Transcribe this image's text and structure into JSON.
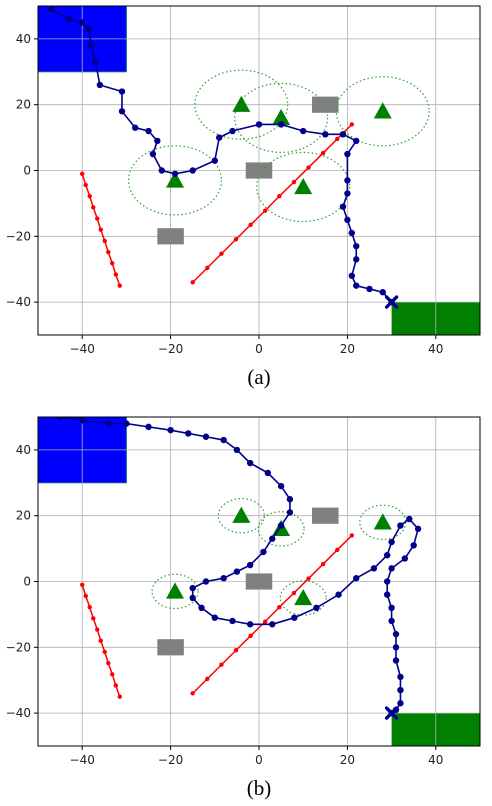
{
  "chart_data": [
    {
      "type": "scatter",
      "caption": "(a)",
      "xlim": [
        -50,
        50
      ],
      "ylim": [
        -50,
        50
      ],
      "xticks": [
        -40,
        -20,
        0,
        20,
        40
      ],
      "yticks": [
        -40,
        -20,
        0,
        20,
        40
      ],
      "grid": true,
      "colors": {
        "start": "#0000ff",
        "goal": "#007f00",
        "path": "#00008b",
        "line": "#ff0000",
        "obstacle": "#808080",
        "landmark": "#008000",
        "zone": "#2ca02c"
      },
      "start_region": {
        "x": [
          -50,
          -30
        ],
        "y": [
          30,
          50
        ]
      },
      "goal_region": {
        "x": [
          30,
          50
        ],
        "y": [
          -50,
          -40
        ]
      },
      "obstacles": [
        {
          "x": 15,
          "y": 20
        },
        {
          "x": -20,
          "y": -20
        },
        {
          "x": 0,
          "y": 0
        }
      ],
      "landmarks": [
        {
          "x": -4,
          "y": 20,
          "radius": 10.5
        },
        {
          "x": 5,
          "y": 16,
          "radius": 10.5
        },
        {
          "x": 28,
          "y": 18,
          "radius": 10.5
        },
        {
          "x": -19,
          "y": -3,
          "radius": 10.5
        },
        {
          "x": 10,
          "y": -5,
          "radius": 10.5
        }
      ],
      "line_segments": [
        {
          "x": [
            -40,
            -39.2,
            -38.3,
            -37.5,
            -36.6,
            -35.8,
            -34.9,
            -34.1,
            -33.2,
            -32.4,
            -31.5
          ],
          "y": [
            -1,
            -4.4,
            -7.8,
            -11.2,
            -14.6,
            -18,
            -21.4,
            -24.8,
            -28.2,
            -31.6,
            -35
          ]
        },
        {
          "x": [
            -15,
            -11.7,
            -8.5,
            -5.2,
            -1.9,
            1.4,
            4.6,
            7.9,
            11.2,
            14.5,
            17.7,
            21
          ],
          "y": [
            -34,
            -29.6,
            -25.3,
            -20.9,
            -16.5,
            -12.2,
            -7.8,
            -3.5,
            0.9,
            5.3,
            9.6,
            14
          ]
        }
      ],
      "path": {
        "x": [
          -47,
          -43,
          -40,
          -38.5,
          -38,
          -37,
          -36,
          -31,
          -31,
          -28,
          -25,
          -23,
          -24,
          -22,
          -19,
          -15,
          -10,
          -9,
          -6,
          0,
          5,
          10,
          15,
          19,
          22,
          20,
          20,
          20,
          19,
          20,
          21,
          22,
          22,
          21,
          22,
          25,
          28,
          30
        ],
        "y": [
          49,
          46,
          45,
          43,
          38,
          33,
          26,
          24,
          18,
          13,
          12,
          9,
          5,
          0,
          -1,
          0,
          3,
          10,
          12,
          14,
          14,
          12,
          11,
          11,
          9,
          5,
          -3,
          -7,
          -11,
          -15,
          -19,
          -23,
          -27,
          -32,
          -35,
          -36,
          -37,
          -40
        ]
      },
      "end_marker": {
        "x": 30,
        "y": -40
      }
    },
    {
      "type": "scatter",
      "caption": "(b)",
      "xlim": [
        -50,
        50
      ],
      "ylim": [
        -50,
        50
      ],
      "xticks": [
        -40,
        -20,
        0,
        20,
        40
      ],
      "yticks": [
        -40,
        -20,
        0,
        20,
        40
      ],
      "grid": true,
      "colors": {
        "start": "#0000ff",
        "goal": "#007f00",
        "path": "#00008b",
        "line": "#ff0000",
        "obstacle": "#808080",
        "landmark": "#008000",
        "zone": "#2ca02c"
      },
      "start_region": {
        "x": [
          -50,
          -30
        ],
        "y": [
          30,
          50
        ]
      },
      "goal_region": {
        "x": [
          30,
          50
        ],
        "y": [
          -50,
          -40
        ]
      },
      "obstacles": [
        {
          "x": 15,
          "y": 20
        },
        {
          "x": -20,
          "y": -20
        },
        {
          "x": 0,
          "y": 0
        }
      ],
      "landmarks": [
        {
          "x": -4,
          "y": 20,
          "radius": 5.2
        },
        {
          "x": 5,
          "y": 16,
          "radius": 5.2
        },
        {
          "x": 28,
          "y": 18,
          "radius": 5.2
        },
        {
          "x": -19,
          "y": -3,
          "radius": 5.2
        },
        {
          "x": 10,
          "y": -5,
          "radius": 5.2
        }
      ],
      "line_segments": [
        {
          "x": [
            -40,
            -39.2,
            -38.3,
            -37.5,
            -36.6,
            -35.8,
            -34.9,
            -34.1,
            -33.2,
            -32.4,
            -31.5
          ],
          "y": [
            -1,
            -4.4,
            -7.8,
            -11.2,
            -14.6,
            -18,
            -21.4,
            -24.8,
            -28.2,
            -31.6,
            -35
          ]
        },
        {
          "x": [
            -15,
            -11.7,
            -8.5,
            -5.2,
            -1.9,
            1.4,
            4.6,
            7.9,
            11.2,
            14.5,
            17.7,
            21
          ],
          "y": [
            -34,
            -29.6,
            -25.3,
            -20.9,
            -16.5,
            -12.2,
            -7.8,
            -3.5,
            0.9,
            5.3,
            9.6,
            14
          ]
        }
      ],
      "path": {
        "x": [
          -45,
          -40,
          -34,
          -30,
          -25,
          -20,
          -16,
          -12,
          -8,
          -5,
          -2,
          2,
          5,
          7,
          7,
          5,
          3,
          1,
          -2,
          -5,
          -8,
          -12,
          -15,
          -15,
          -13,
          -10,
          -6,
          -2,
          3,
          8,
          13,
          18,
          22,
          26,
          29,
          30,
          32,
          34,
          36,
          35,
          33,
          30,
          29,
          29,
          30,
          30,
          31,
          31,
          31,
          32,
          32,
          32,
          31,
          30
        ],
        "y": [
          50,
          49,
          48,
          48,
          47,
          46,
          45,
          44,
          43,
          40,
          36,
          33,
          29,
          25,
          21,
          17,
          13,
          9,
          5,
          3,
          1,
          0,
          -2,
          -5,
          -8,
          -11,
          -12,
          -13,
          -13,
          -11,
          -8,
          -4,
          1,
          4,
          8,
          12,
          17,
          19,
          16,
          11,
          7,
          4,
          0,
          -4,
          -8,
          -12,
          -16,
          -20,
          -24,
          -29,
          -33,
          -37,
          -39,
          -40
        ]
      },
      "end_marker": {
        "x": 30,
        "y": -40
      }
    }
  ]
}
